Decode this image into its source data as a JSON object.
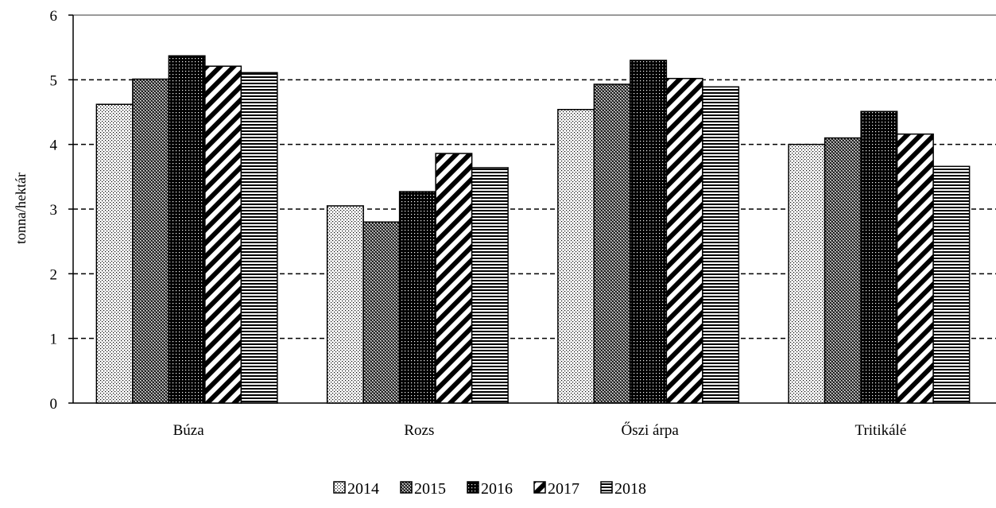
{
  "chart_data": {
    "type": "bar",
    "title": "",
    "xlabel": "",
    "ylabel": "tonna/hektár",
    "ylim": [
      0,
      6
    ],
    "yticks": [
      0,
      1,
      2,
      3,
      4,
      5,
      6
    ],
    "grid": true,
    "grid_style": "dashed",
    "legend_position": "bottom",
    "categories": [
      "Búza",
      "Rozs",
      "Őszi árpa",
      "Tritikálé"
    ],
    "series": [
      {
        "name": "2014",
        "pattern": "dots-fine",
        "values": [
          4.62,
          3.05,
          4.54,
          4.0
        ]
      },
      {
        "name": "2015",
        "pattern": "checker",
        "values": [
          5.01,
          2.8,
          4.93,
          4.1
        ]
      },
      {
        "name": "2016",
        "pattern": "dots-dark",
        "values": [
          5.37,
          3.27,
          5.3,
          4.51
        ]
      },
      {
        "name": "2017",
        "pattern": "diagonal",
        "values": [
          5.21,
          3.86,
          5.02,
          4.16
        ]
      },
      {
        "name": "2018",
        "pattern": "horizontal",
        "values": [
          5.11,
          3.64,
          4.89,
          3.66
        ]
      }
    ]
  }
}
